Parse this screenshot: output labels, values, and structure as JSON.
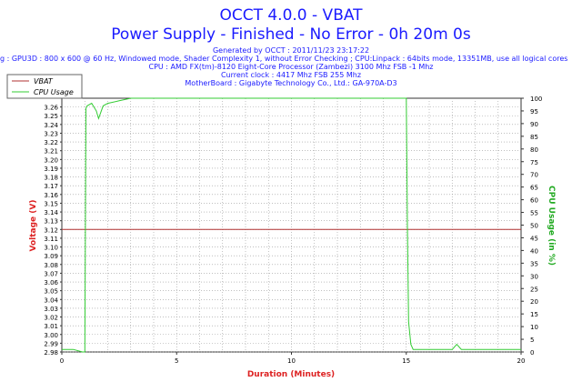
{
  "chart_data": {
    "type": "line",
    "title": "OCCT 4.0.0 - VBAT",
    "subtitle": "Power Supply - Finished - No Error - 0h 20m 0s",
    "info_lines": [
      "Generated by OCCT : 2011/11/23 23:17:22",
      "g : GPU3D : 800 x 600 @ 60 Hz, Windowed mode, Shader Complexity 1, without Error Checking ; CPU:Linpack : 64bits mode, 13351MB, use all logical cores",
      "CPU : AMD FX(tm)-8120 Eight-Core Processor (Zambezi) 3100 Mhz FSB -1 Mhz",
      "Current clock : 4417 Mhz FSB 255 Mhz",
      "MotherBoard : Gigabyte Technology Co., Ltd.: GA-970A-D3"
    ],
    "xlabel": "Duration (Minutes)",
    "ylabel_left": "Voltage (V)",
    "ylabel_right": "CPU Usage (in %)",
    "xlim": [
      0,
      20
    ],
    "ylim_left": [
      2.98,
      3.27
    ],
    "ylim_right": [
      0,
      100
    ],
    "x_ticks": [
      "0",
      "5",
      "10",
      "15",
      "20"
    ],
    "y_left_ticks": [
      "2.98",
      "2.99",
      "3.00",
      "3.01",
      "3.02",
      "3.03",
      "3.04",
      "3.05",
      "3.06",
      "3.07",
      "3.08",
      "3.09",
      "3.10",
      "3.11",
      "3.12",
      "3.13",
      "3.14",
      "3.15",
      "3.16",
      "3.17",
      "3.18",
      "3.19",
      "3.20",
      "3.21",
      "3.22",
      "3.23",
      "3.24",
      "3.25",
      "3.26"
    ],
    "y_right_ticks": [
      "0",
      "5",
      "10",
      "15",
      "20",
      "25",
      "30",
      "35",
      "40",
      "45",
      "50",
      "55",
      "60",
      "65",
      "70",
      "75",
      "80",
      "85",
      "90",
      "95",
      "100"
    ],
    "grid": true,
    "legend_position": "top-left",
    "series": [
      {
        "name": "VBAT",
        "axis": "left",
        "color": "#b03030",
        "x": [
          0,
          20
        ],
        "values": [
          3.12,
          3.12
        ]
      },
      {
        "name": "CPU Usage",
        "axis": "right",
        "color": "#33cc33",
        "x": [
          0,
          0.5,
          0.9,
          1.0,
          1.05,
          1.1,
          1.3,
          1.5,
          1.6,
          1.8,
          2.0,
          2.5,
          3.0,
          4.0,
          5.0,
          6.0,
          7.0,
          8.0,
          9.0,
          10.0,
          11.0,
          12.0,
          13.0,
          14.0,
          14.9,
          15.0,
          15.05,
          15.1,
          15.2,
          15.3,
          16.0,
          17.0,
          17.2,
          17.4,
          18.0,
          19.0,
          20.0
        ],
        "values": [
          1,
          1,
          0,
          0,
          96,
          97,
          98,
          95,
          92,
          97,
          98,
          99,
          100,
          100,
          100,
          100,
          100,
          100,
          100,
          100,
          100,
          100,
          100,
          100,
          100,
          100,
          50,
          12,
          3,
          1,
          1,
          1,
          3,
          1,
          1,
          1,
          1
        ]
      }
    ]
  }
}
